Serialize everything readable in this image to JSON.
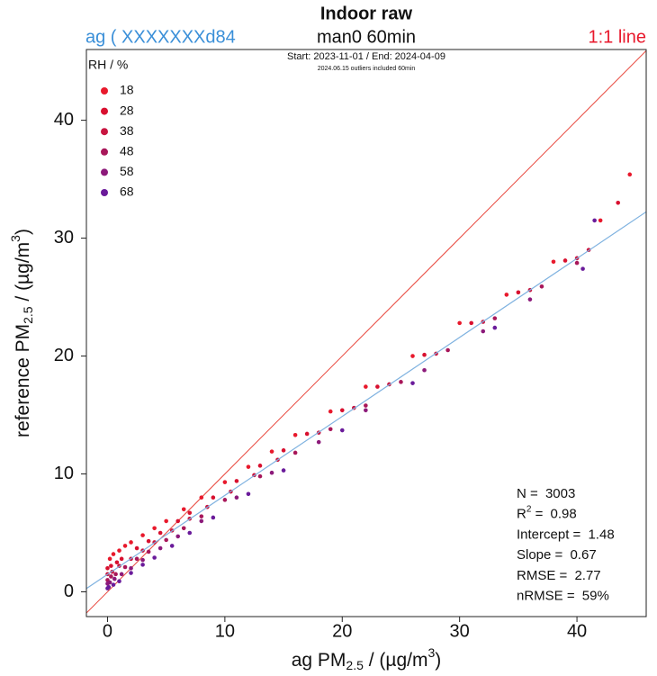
{
  "chart_data": {
    "type": "scatter",
    "title": "Indoor raw",
    "subtitle": "man0 60min",
    "device_label": "ag ( XXXXXXXd84",
    "identity_label": "1:1 line",
    "period": "Start: 2023-11-01 / End: 2024-04-09",
    "note": "2024.06.15 outliers included 60min",
    "x_label": [
      "ag PM",
      "2.5",
      " / (µg/m",
      "3",
      ")"
    ],
    "y_label": [
      "reference PM",
      "2.5",
      " / (µg/m",
      "3",
      ")"
    ],
    "legend_title": "RH / %",
    "legend_position": "upper left",
    "xlim": [
      -1.8,
      45.9
    ],
    "ylim": [
      -2.1,
      46.0
    ],
    "xticks": [
      0,
      10,
      20,
      30,
      40
    ],
    "yticks": [
      0,
      10,
      20,
      30,
      40
    ],
    "identity_color": "#e8463c",
    "fit_color": "#7fb2e0",
    "series": [
      {
        "name": "18",
        "color": "#e8192c",
        "x": [
          0.2,
          0.5,
          1,
          1.5,
          2,
          3,
          4,
          5,
          6.5,
          8,
          10,
          12,
          14,
          16,
          19,
          22,
          26,
          30,
          34,
          38,
          42,
          44.5
        ],
        "values": [
          2.8,
          3.2,
          3.5,
          3.9,
          4.2,
          4.8,
          5.4,
          6.0,
          7.0,
          8.0,
          9.3,
          10.6,
          11.9,
          13.3,
          15.3,
          17.4,
          20.0,
          22.8,
          25.2,
          28.0,
          31.5,
          35.4
        ]
      },
      {
        "name": "28",
        "color": "#d8102f",
        "x": [
          0,
          0.3,
          0.8,
          1.2,
          2.5,
          3.5,
          4.5,
          6,
          7,
          9,
          11,
          13,
          15,
          17,
          20,
          23,
          27,
          31,
          35,
          39,
          43.5
        ],
        "values": [
          2.0,
          2.2,
          2.5,
          2.8,
          3.7,
          4.3,
          5.0,
          6.0,
          6.7,
          8.0,
          9.4,
          10.7,
          12.0,
          13.4,
          15.4,
          17.4,
          20.1,
          22.8,
          25.4,
          28.1,
          33.0
        ]
      },
      {
        "name": "38",
        "color": "#c81540",
        "x": [
          0,
          0.4,
          1,
          2,
          3,
          4,
          5.5,
          7,
          8.5,
          10.5,
          12.5,
          14.5,
          18,
          21,
          24,
          28,
          32,
          36,
          40,
          41
        ],
        "values": [
          1.5,
          1.7,
          2.2,
          2.8,
          3.5,
          4.2,
          5.2,
          6.2,
          7.2,
          8.5,
          9.9,
          11.2,
          13.5,
          15.6,
          17.6,
          20.2,
          22.9,
          25.6,
          28.3,
          29.0
        ]
      },
      {
        "name": "48",
        "color": "#a8175a",
        "x": [
          0,
          0.3,
          0.7,
          1.5,
          2.5,
          3.5,
          5,
          6.5,
          8,
          10,
          13,
          16,
          19,
          22,
          25,
          29,
          33,
          37,
          40
        ],
        "values": [
          1.0,
          1.3,
          1.5,
          2.1,
          2.8,
          3.4,
          4.4,
          5.4,
          6.4,
          7.8,
          9.8,
          11.8,
          13.8,
          15.8,
          17.8,
          20.5,
          23.2,
          25.9,
          27.9
        ]
      },
      {
        "name": "58",
        "color": "#8c1a7a",
        "x": [
          0,
          0.2,
          0.6,
          1.2,
          2,
          3,
          4.5,
          6,
          8,
          11,
          14,
          18,
          22,
          27,
          32,
          36
        ],
        "values": [
          0.7,
          0.8,
          1.1,
          1.5,
          2.0,
          2.7,
          3.7,
          4.7,
          6.0,
          8.0,
          10.1,
          12.7,
          15.4,
          18.8,
          22.1,
          24.8
        ]
      },
      {
        "name": "68",
        "color": "#6a1b9a",
        "x": [
          0,
          0.1,
          0.5,
          1,
          2,
          3,
          4,
          5.5,
          7,
          9,
          12,
          15,
          20,
          26,
          33,
          40.5,
          41.5
        ],
        "values": [
          0.3,
          0.4,
          0.6,
          0.9,
          1.6,
          2.3,
          2.9,
          3.9,
          5.0,
          6.3,
          8.3,
          10.3,
          13.7,
          17.7,
          22.4,
          27.4,
          31.5
        ]
      }
    ],
    "stats": [
      {
        "label": "N = ",
        "value": 3003
      },
      {
        "label_parts": [
          "R",
          "2",
          " = "
        ],
        "value": 0.98
      },
      {
        "label": "Intercept = ",
        "value": 1.48
      },
      {
        "label": "Slope = ",
        "value": 0.67
      },
      {
        "label": "RMSE = ",
        "value": 2.77
      },
      {
        "label": "nRMSE = ",
        "value": 59,
        "value_label": "59%"
      }
    ]
  }
}
